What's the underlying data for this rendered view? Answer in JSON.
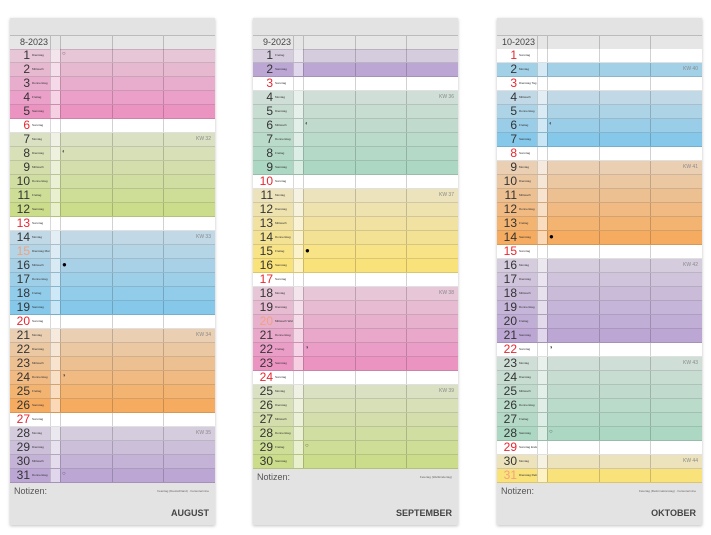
{
  "colors": {
    "pink": "#eb8fc0",
    "green": "#c9dc86",
    "blue": "#80c6ea",
    "orange": "#f5a95a",
    "purple": "#b9a2d3",
    "teal": "#a9d6c0",
    "yellow": "#fbe274",
    "white": "#ffffff",
    "red": "#e8262f",
    "lightred": "#f3a07e"
  },
  "pages": [
    {
      "label": "8-2023",
      "month": "AUGUST",
      "notes": "Notizen:",
      "footer": "Feiertag (Deutschland) · Ferientermine",
      "weekdays": [
        "Dienstag",
        "Mittwoch",
        "Donnerstag",
        "Freitag",
        "Samstag",
        "Sonntag",
        "Montag",
        "Dienstag",
        "Mittwoch",
        "Donnerstag",
        "Freitag",
        "Samstag",
        "Sonntag",
        "Montag",
        "Dienstag Mariä Himmelfahrt",
        "Mittwoch",
        "Donnerstag",
        "Freitag",
        "Samstag",
        "Sonntag",
        "Montag",
        "Dienstag",
        "Mittwoch",
        "Donnerstag",
        "Freitag",
        "Samstag",
        "Sonntag",
        "Montag",
        "Dienstag",
        "Mittwoch",
        "Donnerstag"
      ],
      "bands": [
        [
          "pink",
          1,
          5
        ],
        [
          "green",
          7,
          12
        ],
        [
          "blue",
          14,
          19
        ],
        [
          "orange",
          21,
          26
        ],
        [
          "purple",
          28,
          31
        ]
      ],
      "red": [
        6,
        13,
        20,
        27
      ],
      "lightred": [
        15
      ],
      "kw": {
        "7": "KW 32",
        "14": "KW 33",
        "21": "KW 34",
        "28": "KW 35"
      },
      "moons": {
        "1": "○",
        "8": "◐",
        "16": "●",
        "24": "◑",
        "31": "○"
      }
    },
    {
      "label": "9-2023",
      "month": "SEPTEMBER",
      "notes": "Notizen:",
      "footer": "Feiertag (Weltkindertag)",
      "weekdays": [
        "Freitag",
        "Samstag",
        "Sonntag",
        "Montag",
        "Dienstag",
        "Mittwoch",
        "Donnerstag",
        "Freitag",
        "Samstag",
        "Sonntag",
        "Montag",
        "Dienstag",
        "Mittwoch",
        "Donnerstag",
        "Freitag",
        "Samstag",
        "Sonntag",
        "Montag",
        "Dienstag",
        "Mittwoch Weltkindertag",
        "Donnerstag",
        "Freitag",
        "Samstag",
        "Sonntag",
        "Montag",
        "Dienstag",
        "Mittwoch",
        "Donnerstag",
        "Freitag",
        "Samstag"
      ],
      "bands": [
        [
          "purple",
          1,
          2
        ],
        [
          "teal",
          4,
          9
        ],
        [
          "yellow",
          11,
          16
        ],
        [
          "pink",
          18,
          23
        ],
        [
          "green",
          25,
          30
        ]
      ],
      "red": [
        3,
        10,
        17,
        24
      ],
      "lightred": [
        20
      ],
      "kw": {
        "4": "KW 36",
        "11": "KW 37",
        "18": "KW 38",
        "25": "KW 39"
      },
      "moons": {
        "6": "◐",
        "15": "●",
        "22": "◑",
        "29": "○"
      }
    },
    {
      "label": "10-2023",
      "month": "OKTOBER",
      "notes": "Notizen:",
      "footer": "Feiertag (Reformationstag) · Ferientermine",
      "weekdays": [
        "Sonntag",
        "Montag",
        "Dienstag Tag der Dt. Einheit",
        "Mittwoch",
        "Donnerstag",
        "Freitag",
        "Samstag",
        "Sonntag",
        "Montag",
        "Dienstag",
        "Mittwoch",
        "Donnerstag",
        "Freitag",
        "Samstag",
        "Sonntag",
        "Montag",
        "Dienstag",
        "Mittwoch",
        "Donnerstag",
        "Freitag",
        "Samstag",
        "Sonntag",
        "Montag",
        "Dienstag",
        "Mittwoch",
        "Donnerstag",
        "Freitag",
        "Samstag",
        "Sonntag Ende Sommerzeit",
        "Montag",
        "Dienstag Reformationstag"
      ],
      "bands": [
        [
          "blue",
          2,
          2
        ],
        [
          "blue",
          4,
          7
        ],
        [
          "orange",
          9,
          14
        ],
        [
          "purple",
          16,
          21
        ],
        [
          "teal",
          23,
          28
        ],
        [
          "yellow",
          30,
          31
        ]
      ],
      "red": [
        1,
        3,
        8,
        15,
        22,
        29
      ],
      "lightred": [
        31
      ],
      "kw": {
        "2": "KW 40",
        "9": "KW 41",
        "16": "KW 42",
        "23": "KW 43",
        "30": "KW 44"
      },
      "moons": {
        "6": "◐",
        "14": "●",
        "22": "◑",
        "28": "○"
      },
      "note28": "Ende Sommerzeit"
    }
  ]
}
